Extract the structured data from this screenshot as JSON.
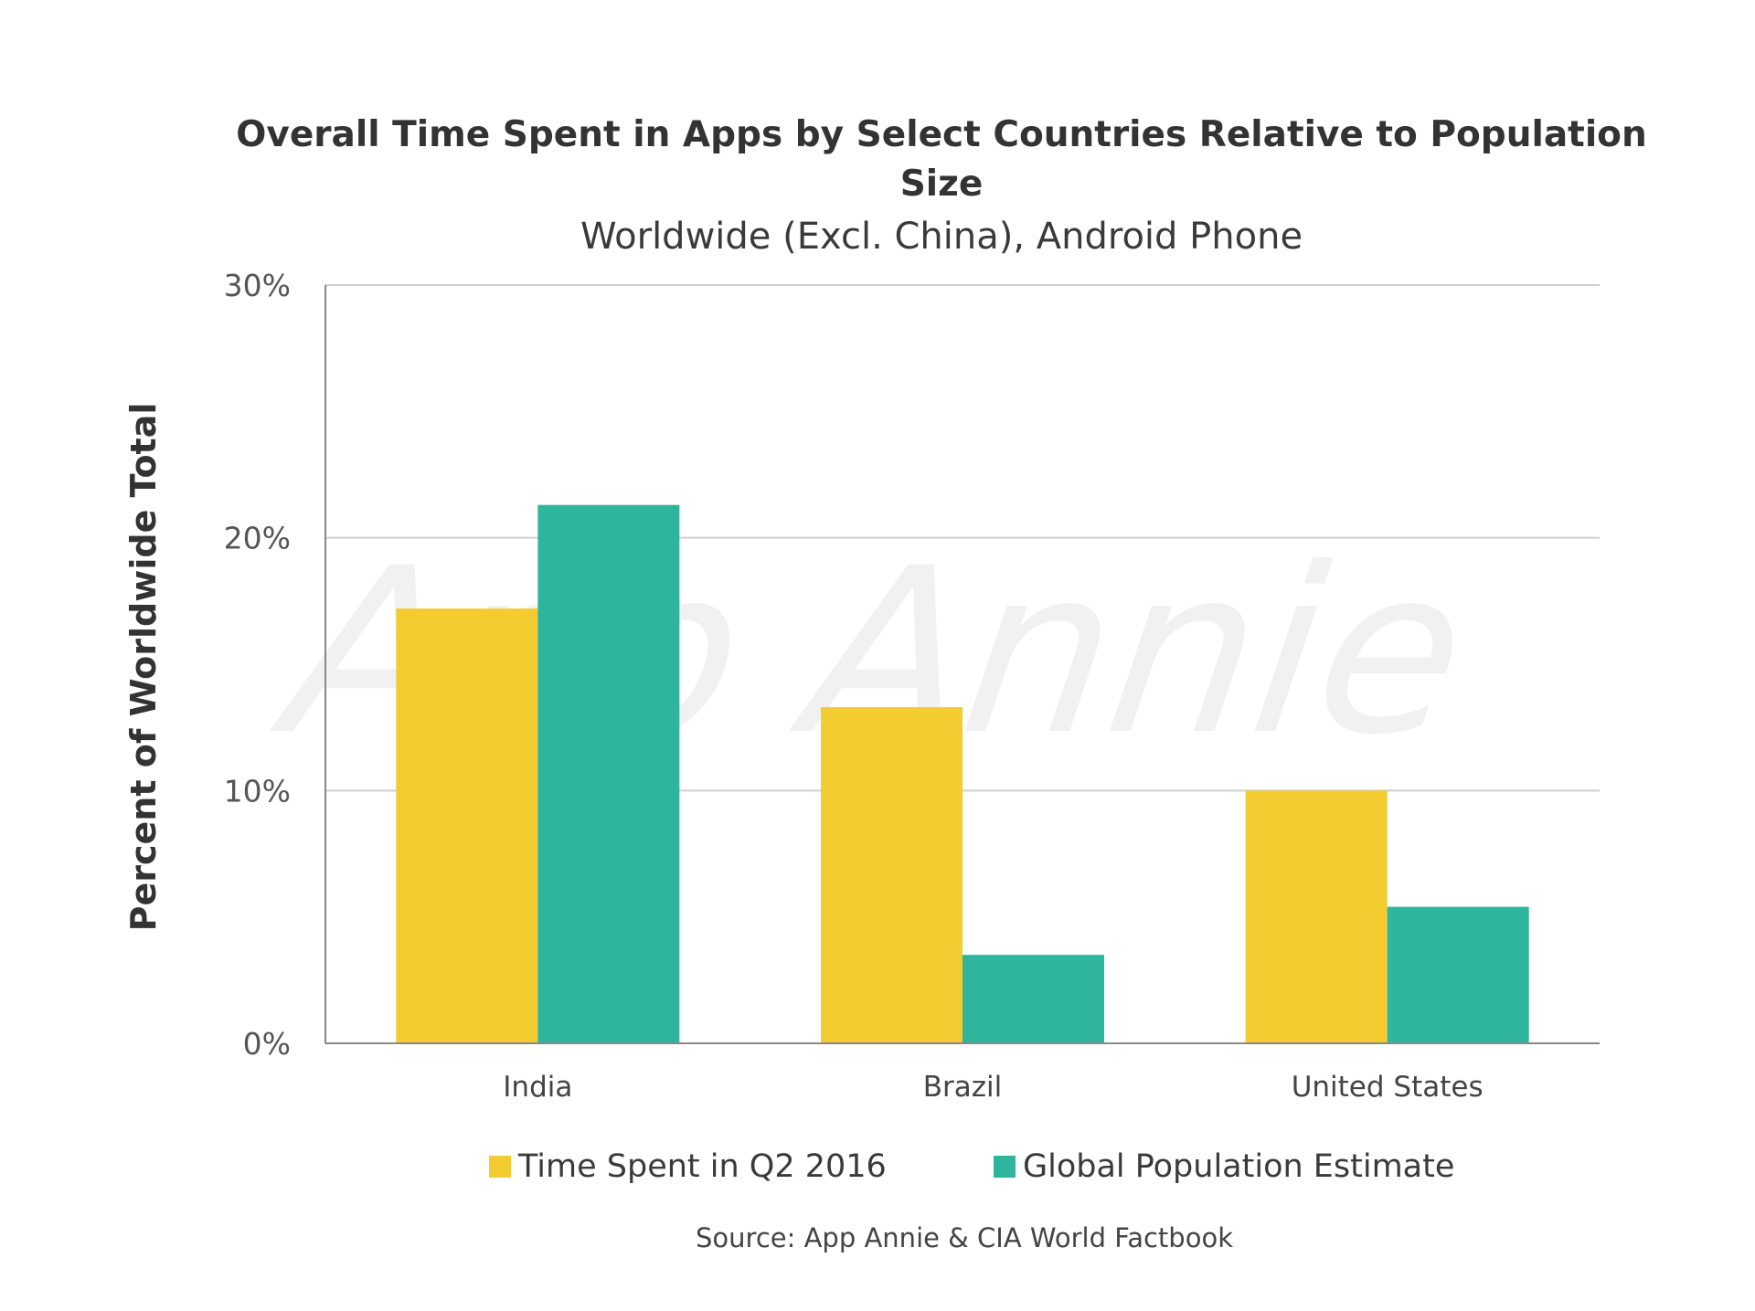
{
  "chart_data": {
    "type": "bar",
    "title_line1": "Overall Time Spent in Apps by Select Countries Relative to Population",
    "title_line2": "Size",
    "subtitle": "Worldwide (Excl. China), Android Phone",
    "ylabel": "Percent of Worldwide Total",
    "xlabel": "",
    "ylim": [
      0,
      30
    ],
    "yticks": [
      "0%",
      "10%",
      "20%",
      "30%"
    ],
    "categories": [
      "India",
      "Brazil",
      "United States"
    ],
    "series": [
      {
        "name": "Time Spent in Q2 2016",
        "color": "#f2cc30",
        "values": [
          17.2,
          13.3,
          10.0
        ]
      },
      {
        "name": "Global Population Estimate",
        "color": "#2fb59c",
        "values": [
          21.3,
          3.5,
          5.4
        ]
      }
    ],
    "grid": true,
    "legend_position": "bottom",
    "source": "Source: App Annie & CIA World Factbook",
    "watermark": "App Annie"
  }
}
